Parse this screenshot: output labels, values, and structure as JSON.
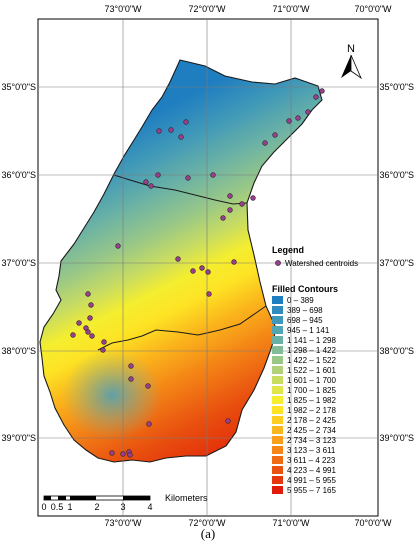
{
  "longitude_ticks": [
    "73°0'0\"W",
    "72°0'0\"W",
    "71°0'0\"W",
    "70°0'0\"W"
  ],
  "latitude_ticks": [
    "35°0'0\"S",
    "36°0'0\"S",
    "37°0'0\"S",
    "38°0'0\"S",
    "39°0'0\"S"
  ],
  "north_arrow": {
    "label": "N",
    "icon": "north-arrow-icon"
  },
  "legend": {
    "title": "Legend",
    "point_label": "Watershed centroids",
    "point_color": "#9b3d8e",
    "contours_title": "Filled Contours",
    "classes": [
      {
        "label": "0 – 389",
        "color": "#1f7ec0"
      },
      {
        "label": "389 – 698",
        "color": "#2f8cbd"
      },
      {
        "label": "698 – 945",
        "color": "#3f98b9"
      },
      {
        "label": "945 – 1 141",
        "color": "#53a5b2"
      },
      {
        "label": "1 141 – 1 298",
        "color": "#69b1a6"
      },
      {
        "label": "1 298 – 1 422",
        "color": "#80bc98"
      },
      {
        "label": "1 422 – 1 522",
        "color": "#98c788"
      },
      {
        "label": "1 522 – 1 601",
        "color": "#b0d177"
      },
      {
        "label": "1 601 – 1 700",
        "color": "#c8dc62"
      },
      {
        "label": "1 700 – 1 825",
        "color": "#e0e64a"
      },
      {
        "label": "1 825 – 1 982",
        "color": "#f5ee2f"
      },
      {
        "label": "1 982 – 2 178",
        "color": "#fde324"
      },
      {
        "label": "2 178 – 2 425",
        "color": "#fdcd20"
      },
      {
        "label": "2 425 – 2 734",
        "color": "#fbb61c"
      },
      {
        "label": "2 734 – 3 123",
        "color": "#f89e19"
      },
      {
        "label": "3 123 – 3 611",
        "color": "#f48516"
      },
      {
        "label": "3 611 – 4 223",
        "color": "#ef6c13"
      },
      {
        "label": "4 223 – 4 991",
        "color": "#e9520f"
      },
      {
        "label": "4 991 – 5 955",
        "color": "#e5370b"
      },
      {
        "label": "5 955 – 7 165",
        "color": "#e01b08"
      }
    ]
  },
  "scale_bar": {
    "ticks": [
      "0",
      "0.5",
      "1",
      "2",
      "3",
      "4"
    ],
    "unit": "Kilometers"
  },
  "caption": "(a)"
}
